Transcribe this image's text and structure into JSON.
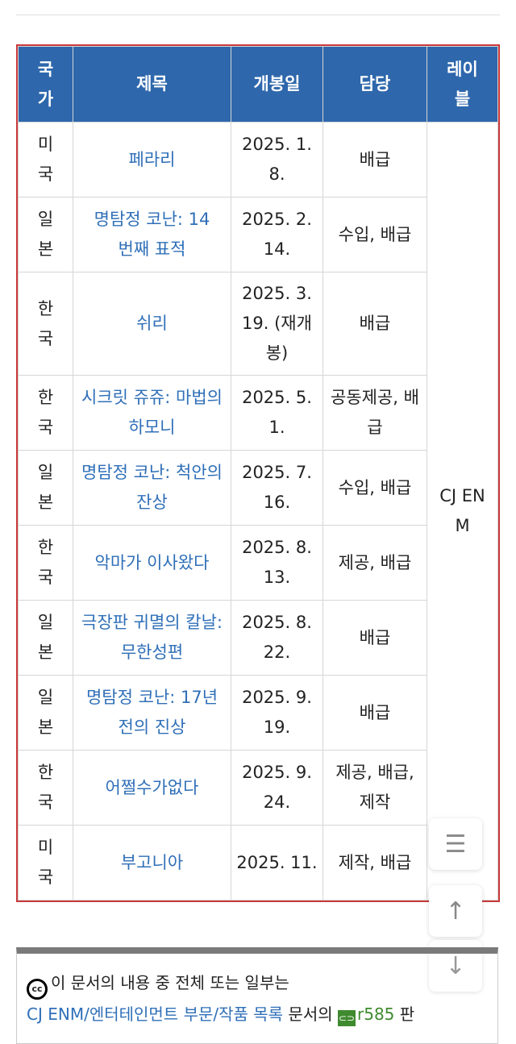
{
  "table": {
    "headers": [
      "국가",
      "제목",
      "개봉일",
      "담당",
      "레이블"
    ],
    "label": "CJ ENM",
    "rows": [
      {
        "country": "미국",
        "title": "페라리",
        "date": "2025. 1. 8.",
        "role": "배급"
      },
      {
        "country": "일본",
        "title": "명탐정 코난: 14 번째 표적",
        "date": "2025. 2. 14.",
        "role": "수입, 배급"
      },
      {
        "country": "한국",
        "title": "쉬리",
        "date": "2025. 3. 19. (재개봉)",
        "role": "배급"
      },
      {
        "country": "한국",
        "title": "시크릿 쥬쥬: 마법의 하모니",
        "date": "2025. 5. 1.",
        "role": "공동제공, 배급"
      },
      {
        "country": "일본",
        "title": "명탐정 코난: 척안의 잔상",
        "date": "2025. 7. 16.",
        "role": "수입, 배급"
      },
      {
        "country": "한국",
        "title": "악마가 이사왔다",
        "date": "2025. 8. 13.",
        "role": "제공, 배급"
      },
      {
        "country": "일본",
        "title": "극장판 귀멸의 칼날: 무한성편",
        "date": "2025. 8. 22.",
        "role": "배급"
      },
      {
        "country": "일본",
        "title": "명탐정 코난: 17년 전의 진상",
        "date": "2025. 9. 19.",
        "role": "배급"
      },
      {
        "country": "한국",
        "title": "어쩔수가없다",
        "date": "2025. 9. 24.",
        "role": "제공, 배급, 제작"
      },
      {
        "country": "미국",
        "title": "부고니아",
        "date": "2025. 11.",
        "role": "제작, 배급"
      }
    ]
  },
  "footer": {
    "line1": "이 문서의 내용 중 전체 또는 일부는",
    "doc_link": "CJ ENM/엔터테인먼트 부문/작품 목록",
    "mid": " 문서의 ",
    "revision": "r585",
    "tail": " 판"
  },
  "floating": {
    "toc_icon": "list-icon",
    "up_icon": "arrow-up-icon",
    "down_icon": "arrow-down-icon"
  },
  "colors": {
    "header_bg": "#2e67ac",
    "border_highlight": "#c9393b",
    "link": "#2f6fb8",
    "revision": "#3f8a2e"
  }
}
